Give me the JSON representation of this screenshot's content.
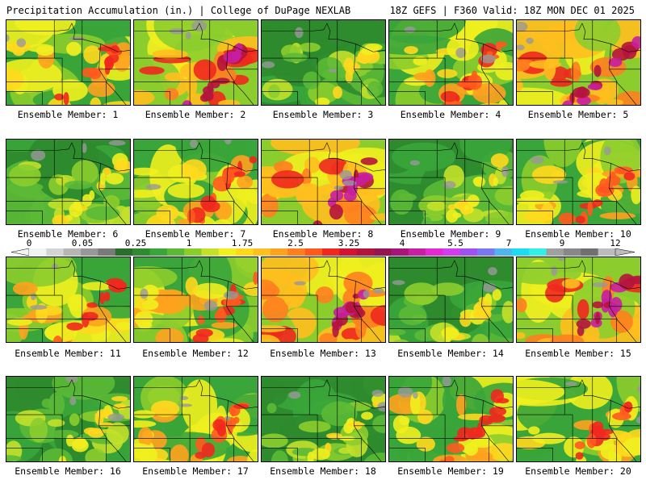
{
  "header": {
    "left_title": "Precipitation Accumulation (in.) | College of DuPage NEXLAB",
    "right_title": "18Z GEFS | F360 Valid: 18Z MON DEC 01 2025"
  },
  "colorbar": {
    "labels": [
      "0",
      "0.05",
      "0.25",
      "1",
      "1.75",
      "2.5",
      "3.25",
      "4",
      "5.5",
      "7",
      "9",
      "12"
    ],
    "colors": [
      "#f2f2f2",
      "#d4d4d4",
      "#b6b6b6",
      "#989898",
      "#7a7a7a",
      "#2b6e2b",
      "#2e8b2e",
      "#3aa53a",
      "#5cb936",
      "#8ccd2e",
      "#c4e12a",
      "#f0f01e",
      "#ffd81e",
      "#ffbf1e",
      "#ffa21e",
      "#ff7f1e",
      "#ff5a1e",
      "#f0281e",
      "#d21432",
      "#b4143c",
      "#961450",
      "#aa1478",
      "#c81ea0",
      "#e628d2",
      "#d23cf0",
      "#a050f0",
      "#7878f0",
      "#50b4f0",
      "#1edcf0",
      "#32f0e6",
      "#a0a0a0",
      "#888888",
      "#707070",
      "#bcbcbc"
    ]
  },
  "members": [
    {
      "label": "Ensemble Member: 1",
      "palette": "mid"
    },
    {
      "label": "Ensemble Member: 2",
      "palette": "heavy"
    },
    {
      "label": "Ensemble Member: 3",
      "palette": "dry"
    },
    {
      "label": "Ensemble Member: 4",
      "palette": "mid"
    },
    {
      "label": "Ensemble Member: 5",
      "palette": "heavy"
    },
    {
      "label": "Ensemble Member: 6",
      "palette": "dry"
    },
    {
      "label": "Ensemble Member: 7",
      "palette": "mid"
    },
    {
      "label": "Ensemble Member: 8",
      "palette": "heavy"
    },
    {
      "label": "Ensemble Member: 9",
      "palette": "dry"
    },
    {
      "label": "Ensemble Member: 10",
      "palette": "mid"
    },
    {
      "label": "Ensemble Member: 11",
      "palette": "mid"
    },
    {
      "label": "Ensemble Member: 12",
      "palette": "mid"
    },
    {
      "label": "Ensemble Member: 13",
      "palette": "heavy"
    },
    {
      "label": "Ensemble Member: 14",
      "palette": "dry"
    },
    {
      "label": "Ensemble Member: 15",
      "palette": "heavy"
    },
    {
      "label": "Ensemble Member: 16",
      "palette": "dry"
    },
    {
      "label": "Ensemble Member: 17",
      "palette": "mid"
    },
    {
      "label": "Ensemble Member: 18",
      "palette": "dry"
    },
    {
      "label": "Ensemble Member: 19",
      "palette": "mid"
    },
    {
      "label": "Ensemble Member: 20",
      "palette": "mid"
    }
  ]
}
